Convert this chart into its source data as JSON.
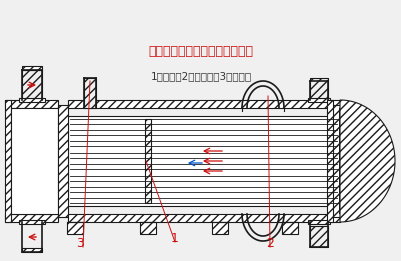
{
  "bg_color": "#f0f0f0",
  "line_color": "#1a1a1a",
  "red_color": "#cc1111",
  "blue_color": "#0055cc",
  "caption_color": "#333333",
  "title_color": "#cc1111",
  "caption_text": "1－挡板；2－补唇圈；3－放气嘴",
  "title_text": "具有补唇圈的固定管板式换热器",
  "label_1": "1",
  "label_2": "2",
  "label_3": "3",
  "figsize": [
    4.02,
    2.61
  ],
  "dpi": 100
}
